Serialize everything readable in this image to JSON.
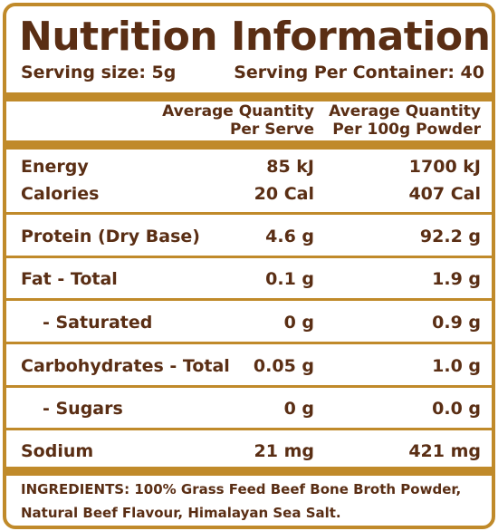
{
  "title": "Nutrition Information",
  "serving": {
    "size": "Serving size: 5g",
    "per_container": "Serving Per Container: 40"
  },
  "columns": {
    "per_serve": [
      "Average Quantity",
      "Per Serve"
    ],
    "per_100g": [
      "Average Quantity",
      "Per 100g Powder"
    ]
  },
  "rows": [
    {
      "name": "Energy",
      "per_serve": "85 kJ",
      "per_100g": "1700 kJ"
    },
    {
      "name": "Calories",
      "per_serve": "20 Cal",
      "per_100g": "407 Cal"
    },
    {
      "name": "Protein (Dry Base)",
      "per_serve": "4.6 g",
      "per_100g": "92.2 g"
    },
    {
      "name": "Fat - Total",
      "per_serve": "0.1 g",
      "per_100g": "1.9 g"
    },
    {
      "name": "- Saturated",
      "per_serve": "0 g",
      "per_100g": "0.9 g"
    },
    {
      "name": "Carbohydrates - Total",
      "per_serve": "0.05 g",
      "per_100g": "1.0 g"
    },
    {
      "name": "- Sugars",
      "per_serve": "0 g",
      "per_100g": "0.0 g"
    },
    {
      "name": "Sodium",
      "per_serve": "21 mg",
      "per_100g": "421 mg"
    }
  ],
  "ingredients": "INGREDIENTS: 100% Grass Feed Beef Bone Broth Powder, Natural Beef Flavour, Himalayan Sea Salt.",
  "colors": {
    "text": "#5a2e14",
    "border": "#c08a2a"
  }
}
